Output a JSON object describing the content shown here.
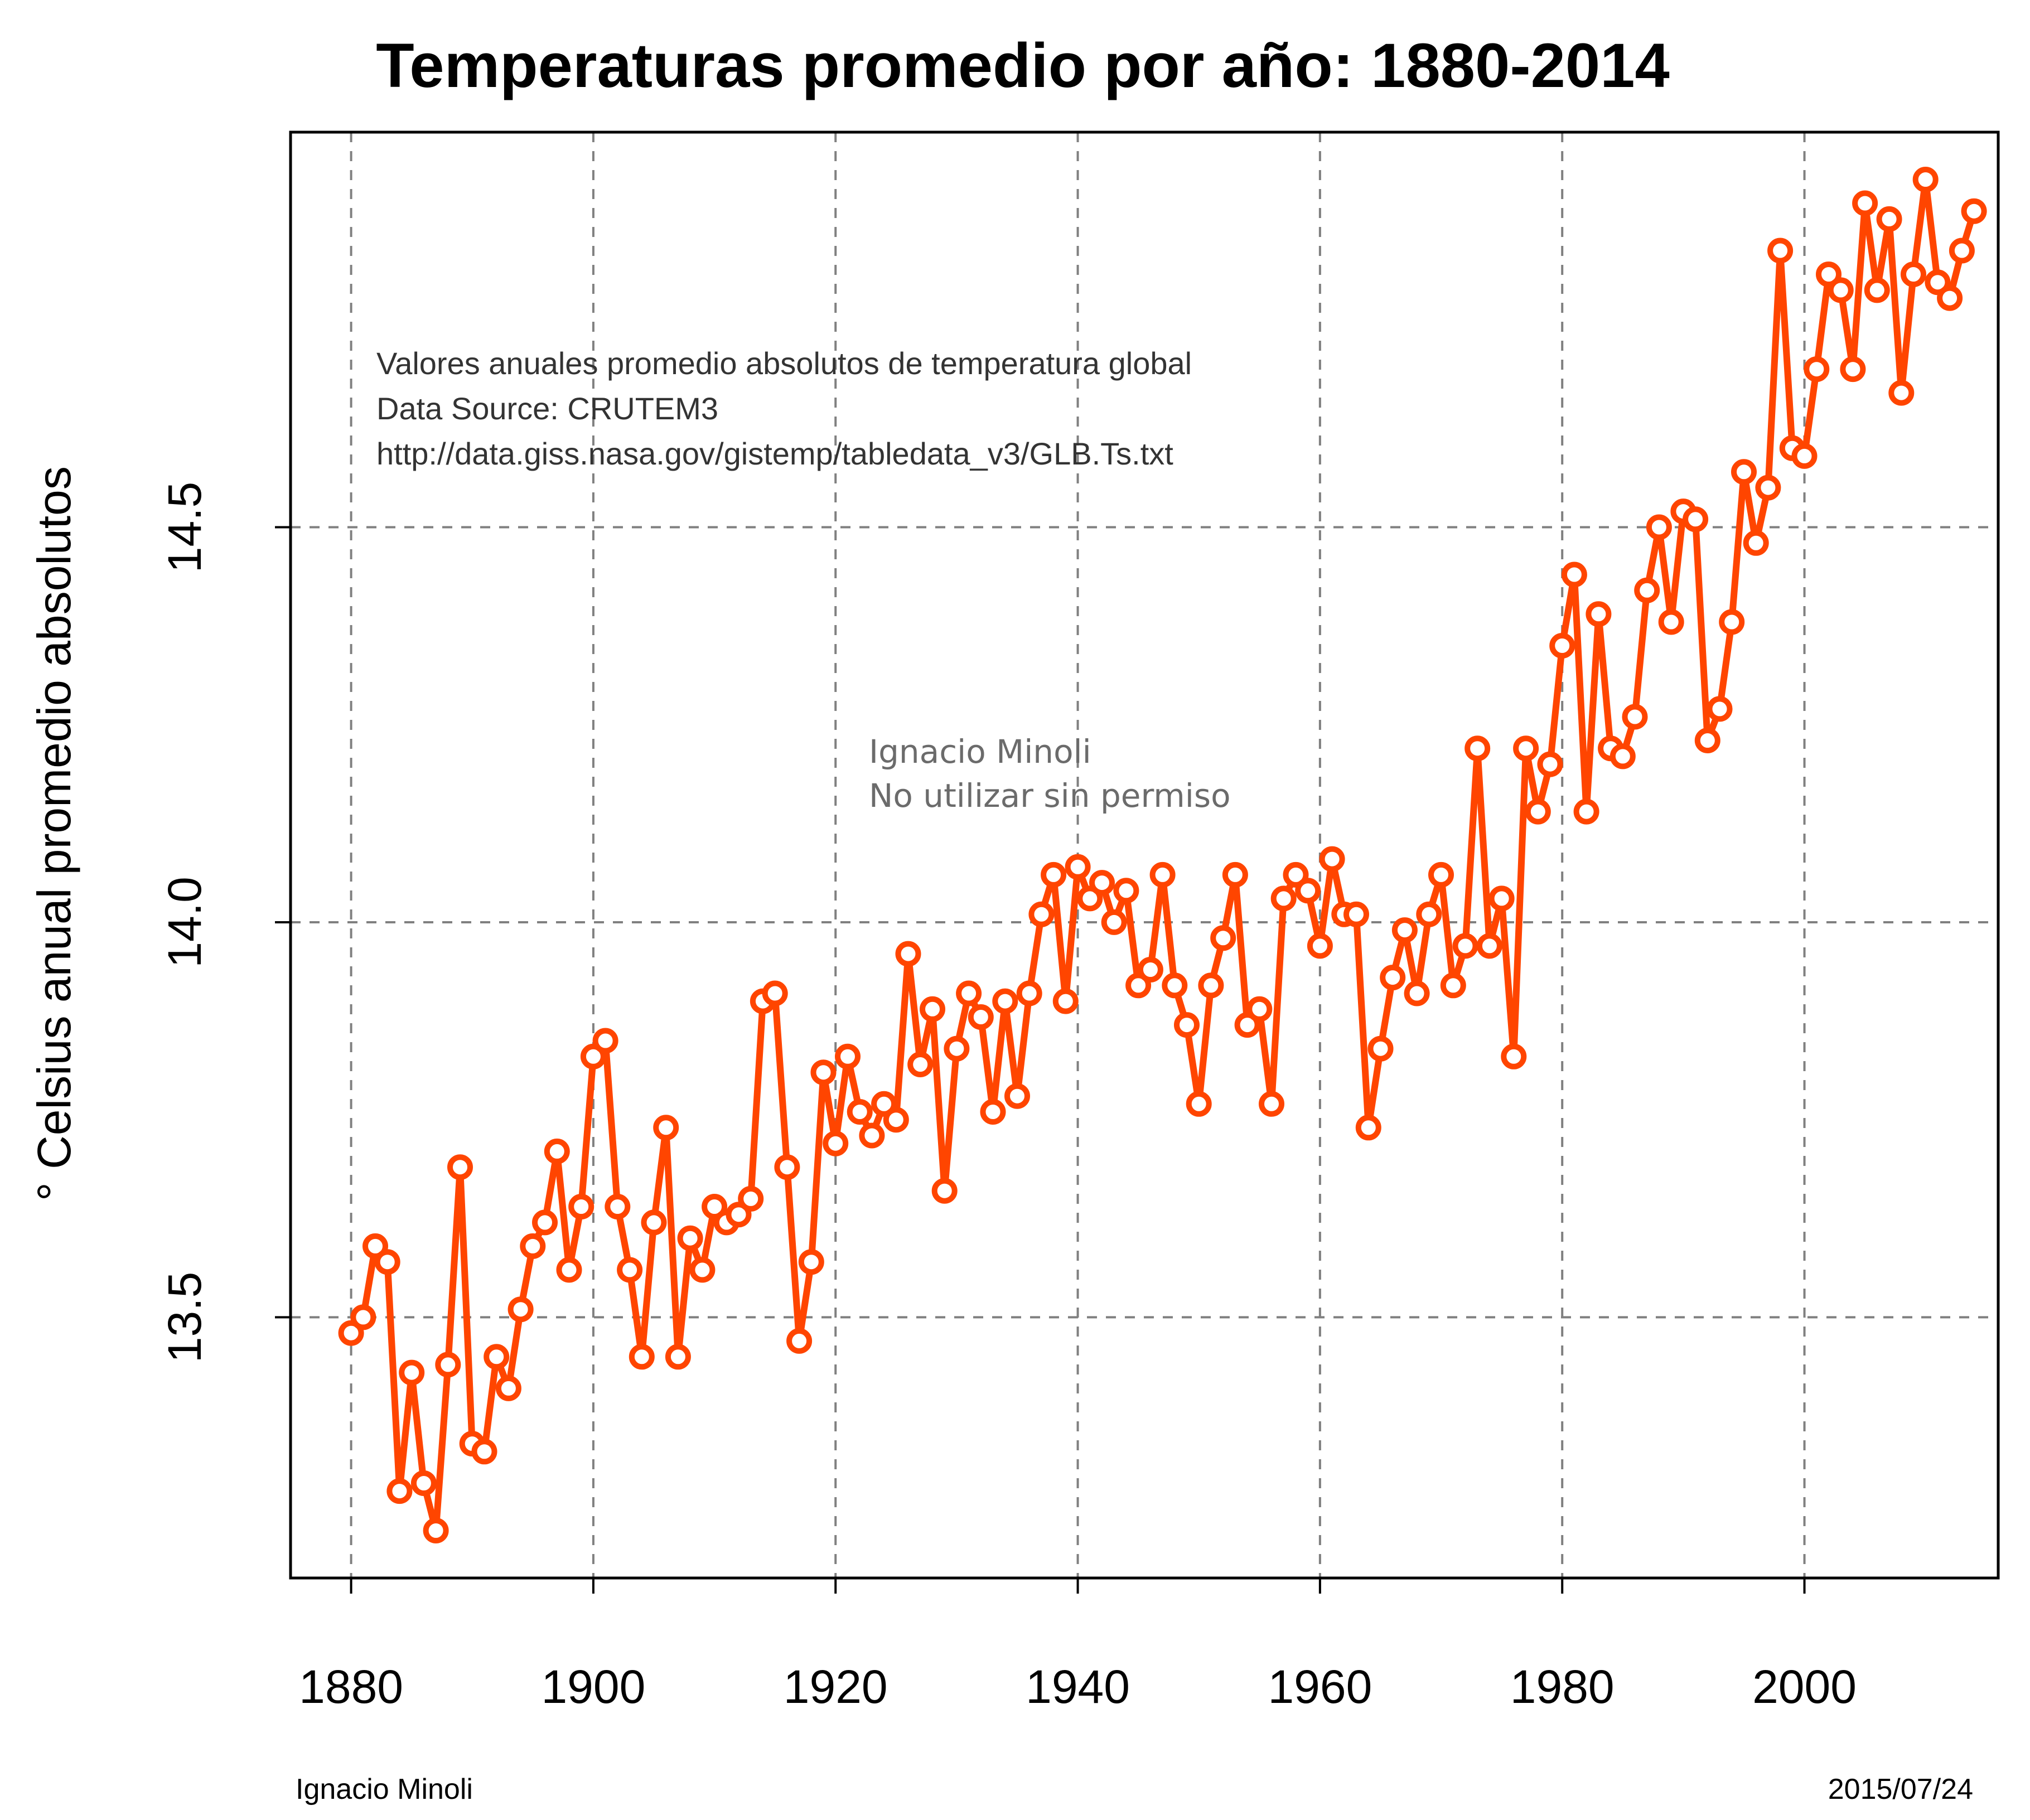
{
  "chart_data": {
    "type": "line",
    "title": "Temperaturas promedio por año: 1880-2014",
    "xlabel": "",
    "ylabel": "° Celsius anual promedio absolutos",
    "x_ticks": [
      "1880",
      "1900",
      "1920",
      "1940",
      "1960",
      "1980",
      "2000"
    ],
    "y_ticks": [
      "13.5",
      "14.0",
      "14.5"
    ],
    "xlim": [
      1875,
      2016
    ],
    "ylim": [
      13.17,
      15.0
    ],
    "grid": true,
    "colors": {
      "series": "#ff4500",
      "grid": "#808080",
      "frame": "#000000",
      "background": "#ffffff"
    },
    "series": [
      {
        "x": [
          1880,
          1881,
          1882,
          1883,
          1884,
          1885,
          1886,
          1887,
          1888,
          1889,
          1890,
          1891,
          1892,
          1893,
          1894,
          1895,
          1896,
          1897,
          1898,
          1899,
          1900,
          1901,
          1902,
          1903,
          1904,
          1905,
          1906,
          1907,
          1908,
          1909,
          1910,
          1911,
          1912,
          1913,
          1914,
          1915,
          1916,
          1917,
          1918,
          1919,
          1920,
          1921,
          1922,
          1923,
          1924,
          1925,
          1926,
          1927,
          1928,
          1929,
          1930,
          1931,
          1932,
          1933,
          1934,
          1935,
          1936,
          1937,
          1938,
          1939,
          1940,
          1941,
          1942,
          1943,
          1944,
          1945,
          1946,
          1947,
          1948,
          1949,
          1950,
          1951,
          1952,
          1953,
          1954,
          1955,
          1956,
          1957,
          1958,
          1959,
          1960,
          1961,
          1962,
          1963,
          1964,
          1965,
          1966,
          1967,
          1968,
          1969,
          1970,
          1971,
          1972,
          1973,
          1974,
          1975,
          1976,
          1977,
          1978,
          1979,
          1980,
          1981,
          1982,
          1983,
          1984,
          1985,
          1986,
          1987,
          1988,
          1989,
          1990,
          1991,
          1992,
          1993,
          1994,
          1995,
          1996,
          1997,
          1998,
          1999,
          2000,
          2001,
          2002,
          2003,
          2004,
          2005,
          2006,
          2007,
          2008,
          2009,
          2010,
          2011,
          2012,
          2013,
          2014
        ],
        "values": [
          13.48,
          13.5,
          13.59,
          13.57,
          13.28,
          13.43,
          13.29,
          13.23,
          13.44,
          13.69,
          13.34,
          13.33,
          13.45,
          13.41,
          13.51,
          13.59,
          13.62,
          13.71,
          13.56,
          13.64,
          13.83,
          13.85,
          13.64,
          13.56,
          13.45,
          13.62,
          13.74,
          13.45,
          13.6,
          13.56,
          13.64,
          13.62,
          13.63,
          13.65,
          13.9,
          13.91,
          13.69,
          13.47,
          13.57,
          13.81,
          13.72,
          13.83,
          13.76,
          13.73,
          13.77,
          13.75,
          13.96,
          13.82,
          13.89,
          13.66,
          13.84,
          13.91,
          13.88,
          13.76,
          13.9,
          13.78,
          13.91,
          14.01,
          14.06,
          13.9,
          14.07,
          14.03,
          14.05,
          14.0,
          14.04,
          13.92,
          13.94,
          14.06,
          13.92,
          13.87,
          13.77,
          13.92,
          13.98,
          14.06,
          13.87,
          13.89,
          13.77,
          14.03,
          14.06,
          14.04,
          13.97,
          14.08,
          14.01,
          14.01,
          13.74,
          13.84,
          13.93,
          13.99,
          13.91,
          14.01,
          14.06,
          13.92,
          13.97,
          14.22,
          13.97,
          14.03,
          13.83,
          14.22,
          14.14,
          14.2,
          14.35,
          14.44,
          14.14,
          14.39,
          14.22,
          14.21,
          14.26,
          14.42,
          14.5,
          14.38,
          14.52,
          14.51,
          14.23,
          14.27,
          14.38,
          14.57,
          14.48,
          14.55,
          14.85,
          14.6,
          14.59,
          14.7,
          14.82,
          14.8,
          14.7,
          14.91,
          14.8,
          14.89,
          14.67,
          14.82,
          14.94,
          14.81,
          14.79,
          14.85,
          14.9
        ]
      }
    ]
  },
  "annotations": {
    "source_lines": [
      "Valores anuales promedio absolutos de temperatura global",
      "Data Source: CRUTEM3",
      "http://data.giss.nasa.gov/gistemp/tabledata_v3/GLB.Ts.txt"
    ],
    "watermark_lines": [
      "Ignacio Minoli",
      "No utilizar sin permiso"
    ]
  },
  "footer": {
    "author": "Ignacio Minoli",
    "date": "2015/07/24"
  }
}
